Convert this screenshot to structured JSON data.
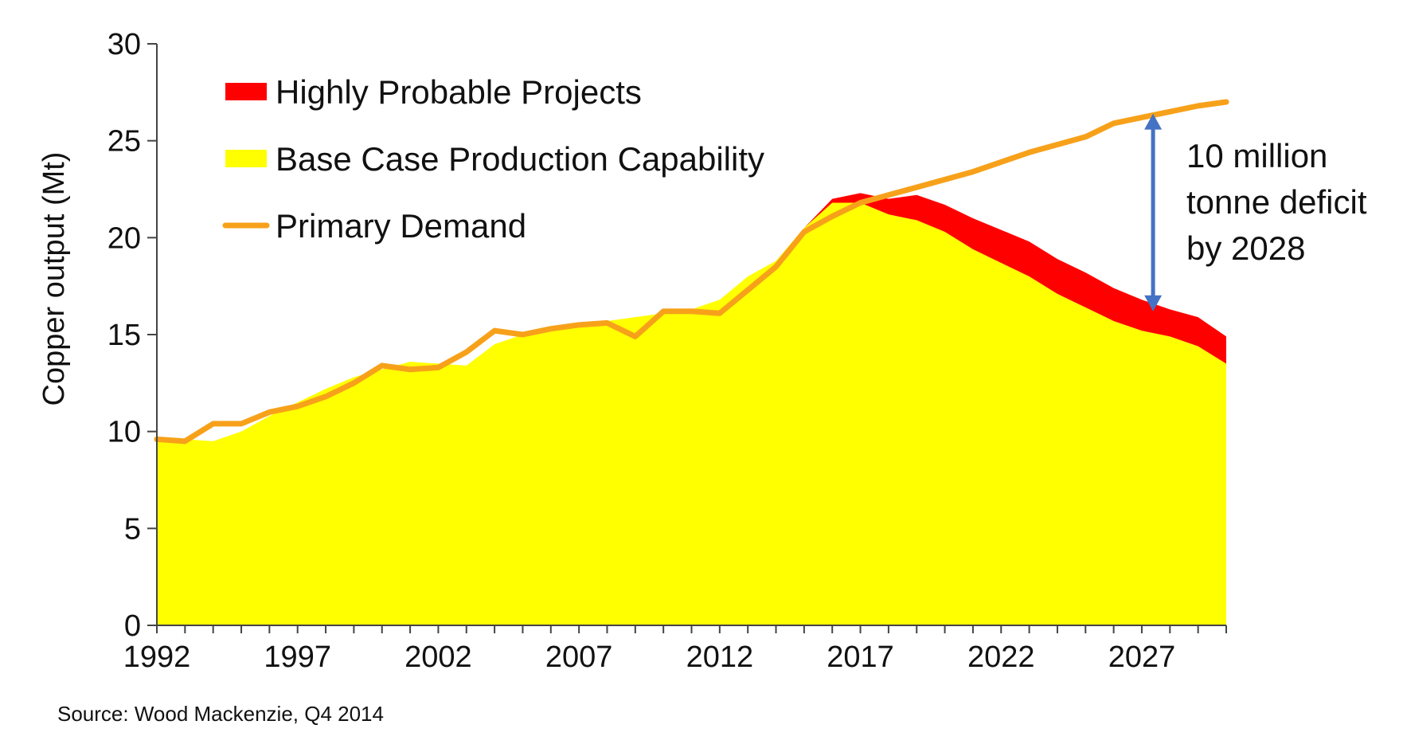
{
  "chart_data": {
    "type": "area",
    "title": "",
    "xlabel": "",
    "ylabel": "Copper output (Mt)",
    "x": [
      1992,
      1993,
      1994,
      1995,
      1996,
      1997,
      1998,
      1999,
      2000,
      2001,
      2002,
      2003,
      2004,
      2005,
      2006,
      2007,
      2008,
      2009,
      2010,
      2011,
      2012,
      2013,
      2014,
      2015,
      2016,
      2017,
      2018,
      2019,
      2020,
      2021,
      2022,
      2023,
      2024,
      2025,
      2026,
      2027,
      2028,
      2029,
      2030
    ],
    "xlim": [
      1992,
      2030
    ],
    "xticks": [
      "1992",
      "1997",
      "2002",
      "2007",
      "2012",
      "2017",
      "2022",
      "2027"
    ],
    "ylim": [
      0,
      30
    ],
    "yticks": [
      "0",
      "5",
      "10",
      "15",
      "20",
      "25",
      "30"
    ],
    "series": [
      {
        "name": "Base Case Production Capability",
        "kind": "stacked-area",
        "color": "#FFFF00",
        "values": [
          9.5,
          9.6,
          9.5,
          10.0,
          10.8,
          11.5,
          12.2,
          12.8,
          13.2,
          13.6,
          13.5,
          13.4,
          14.5,
          15.0,
          15.3,
          15.5,
          15.7,
          15.9,
          16.1,
          16.3,
          16.8,
          18.0,
          18.8,
          20.5,
          21.8,
          21.8,
          21.2,
          20.9,
          20.3,
          19.4,
          18.7,
          18.0,
          17.1,
          16.4,
          15.7,
          15.2,
          14.9,
          14.4,
          13.5
        ]
      },
      {
        "name": "Highly Probable Projects",
        "kind": "stacked-area",
        "color": "#FF0000",
        "values": [
          0,
          0,
          0,
          0,
          0,
          0,
          0,
          0,
          0,
          0,
          0,
          0,
          0,
          0,
          0,
          0,
          0,
          0,
          0,
          0,
          0,
          0,
          0,
          0,
          0.2,
          0.5,
          0.8,
          1.3,
          1.4,
          1.6,
          1.7,
          1.8,
          1.8,
          1.8,
          1.7,
          1.6,
          1.4,
          1.5,
          1.4
        ]
      },
      {
        "name": "Primary Demand",
        "kind": "line",
        "color": "#F7A11A",
        "values": [
          9.6,
          9.5,
          10.4,
          10.4,
          11.0,
          11.3,
          11.8,
          12.5,
          13.4,
          13.2,
          13.3,
          14.1,
          15.2,
          15.0,
          15.3,
          15.5,
          15.6,
          14.9,
          16.2,
          16.2,
          16.1,
          17.3,
          18.5,
          20.3,
          21.1,
          21.8,
          22.2,
          22.6,
          23.0,
          23.4,
          23.9,
          24.4,
          24.8,
          25.2,
          25.9,
          26.2,
          26.5,
          26.8,
          27.0
        ]
      }
    ],
    "legend": {
      "position": "top-left",
      "entries": [
        "Highly Probable Projects",
        "Base Case Production Capability",
        "Primary Demand"
      ]
    },
    "annotation": {
      "lines": [
        "10 million",
        "tonne deficit",
        "by 2028"
      ],
      "arrow_x": 2027.4,
      "arrow_from": 16.2,
      "arrow_to": 26.4,
      "arrow_color": "#4472C4"
    },
    "source": "Source: Wood Mackenzie, Q4 2014"
  }
}
